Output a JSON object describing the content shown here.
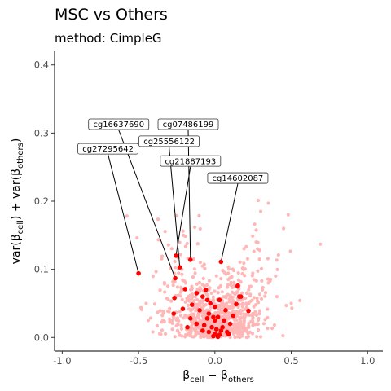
{
  "chart_data": {
    "type": "scatter",
    "title": "MSC vs Others",
    "subtitle": "method: CimpleG",
    "xlabel": {
      "main": "β",
      "sub1": "cell",
      "sep": " − β",
      "sub2": "others"
    },
    "ylabel": {
      "pre": "var(β",
      "sub1": "cell",
      "mid": ") + var(β",
      "sub2": "others",
      "post": ")"
    },
    "xlim": [
      -1.05,
      1.1
    ],
    "ylim": [
      -0.02,
      0.42
    ],
    "xticks": [
      -1.0,
      -0.5,
      0.0,
      0.5,
      1.0
    ],
    "xtick_labels": [
      "-1.0",
      "-0.5",
      "0.0",
      "0.5",
      "1.0"
    ],
    "yticks": [
      0.0,
      0.1,
      0.2,
      0.3,
      0.4
    ],
    "ytick_labels": [
      "0.0",
      "0.1",
      "0.2",
      "0.3",
      "0.4"
    ],
    "grid": false,
    "colors": {
      "background_points": "#ffb6b6",
      "highlight_points": "#ff0000"
    },
    "highlighted_points": [
      {
        "x": -0.5,
        "y": 0.094
      },
      {
        "x": -0.26,
        "y": 0.087
      },
      {
        "x": -0.255,
        "y": 0.12
      },
      {
        "x": -0.23,
        "y": 0.103
      },
      {
        "x": -0.16,
        "y": 0.114
      },
      {
        "x": 0.04,
        "y": 0.111
      },
      {
        "x": -0.265,
        "y": 0.058
      },
      {
        "x": -0.195,
        "y": 0.071
      },
      {
        "x": -0.12,
        "y": 0.065
      },
      {
        "x": -0.08,
        "y": 0.06
      },
      {
        "x": -0.05,
        "y": 0.055
      },
      {
        "x": -0.15,
        "y": 0.048
      },
      {
        "x": -0.21,
        "y": 0.042
      },
      {
        "x": -0.27,
        "y": 0.035
      },
      {
        "x": -0.1,
        "y": 0.04
      },
      {
        "x": -0.04,
        "y": 0.035
      },
      {
        "x": 0.02,
        "y": 0.03
      },
      {
        "x": 0.06,
        "y": 0.025
      },
      {
        "x": -0.12,
        "y": 0.02
      },
      {
        "x": -0.07,
        "y": 0.018
      },
      {
        "x": -0.02,
        "y": 0.015
      },
      {
        "x": 0.01,
        "y": 0.012
      },
      {
        "x": 0.04,
        "y": 0.01
      },
      {
        "x": 0.08,
        "y": 0.008
      },
      {
        "x": -0.04,
        "y": 0.008
      },
      {
        "x": 0.0,
        "y": 0.005
      },
      {
        "x": 0.03,
        "y": 0.004
      },
      {
        "x": -0.01,
        "y": 0.002
      },
      {
        "x": 0.02,
        "y": 0.001
      },
      {
        "x": -0.08,
        "y": 0.01
      },
      {
        "x": -0.16,
        "y": 0.028
      },
      {
        "x": -0.05,
        "y": 0.028
      },
      {
        "x": 0.0,
        "y": 0.045
      },
      {
        "x": 0.03,
        "y": 0.055
      },
      {
        "x": 0.15,
        "y": 0.076
      },
      {
        "x": 0.16,
        "y": 0.06
      },
      {
        "x": 0.15,
        "y": 0.075
      },
      {
        "x": 0.17,
        "y": 0.06
      },
      {
        "x": 0.14,
        "y": 0.049
      },
      {
        "x": 0.22,
        "y": 0.039
      },
      {
        "x": 0.12,
        "y": 0.032
      },
      {
        "x": 0.1,
        "y": 0.02
      },
      {
        "x": -0.06,
        "y": 0.07
      },
      {
        "x": 0.0,
        "y": 0.025
      },
      {
        "x": 0.05,
        "y": 0.015
      },
      {
        "x": -0.03,
        "y": 0.05
      },
      {
        "x": 0.07,
        "y": 0.04
      },
      {
        "x": -0.18,
        "y": 0.015
      },
      {
        "x": 0.09,
        "y": 0.005
      },
      {
        "x": -0.01,
        "y": 0.03
      }
    ],
    "labels": [
      {
        "text": "cg27295642",
        "x": -0.5,
        "y": 0.094,
        "lx": -0.7,
        "ly": 0.277
      },
      {
        "text": "cg16637690",
        "x": -0.26,
        "y": 0.087,
        "lx": -0.63,
        "ly": 0.313
      },
      {
        "text": "cg25556122",
        "x": -0.23,
        "y": 0.103,
        "lx": -0.3,
        "ly": 0.288
      },
      {
        "text": "cg07486199",
        "x": -0.16,
        "y": 0.114,
        "lx": -0.175,
        "ly": 0.313
      },
      {
        "text": "cg21887193",
        "x": -0.255,
        "y": 0.12,
        "lx": -0.16,
        "ly": 0.259
      },
      {
        "text": "cg14602087",
        "x": 0.04,
        "y": 0.111,
        "lx": 0.15,
        "ly": 0.234
      }
    ]
  }
}
